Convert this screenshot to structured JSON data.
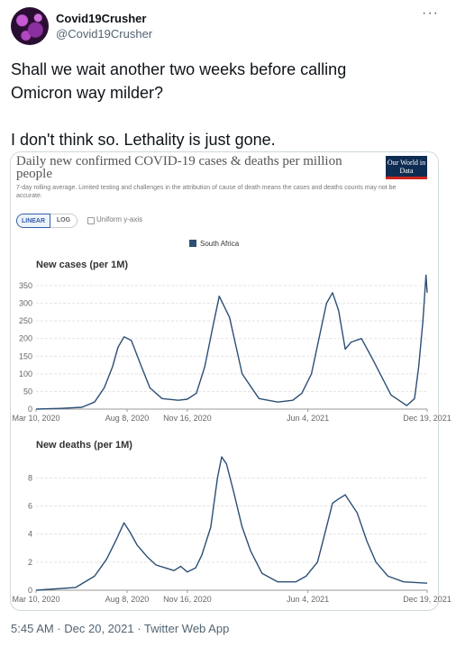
{
  "tweet": {
    "display_name": "Covid19Crusher",
    "handle": "@Covid19Crusher",
    "more_icon": "more-horizontal-icon",
    "text": "Shall we wait another two weeks before calling\nOmicron way milder?\n\nI don't think so. Lethality is just gone.",
    "timestamp": "5:45 AM · Dec 20, 2021 · Twitter Web App"
  },
  "owid": {
    "title": "Daily new confirmed COVID-19 cases & deaths per million people",
    "subtitle": "7-day rolling average. Limited testing and challenges in the attribution of cause of death means the cases and deaths counts may not be accurate.",
    "logo": "Our World in Data",
    "controls": {
      "linear": "LINEAR",
      "log": "LOG",
      "uniform": "Uniform y-axis"
    },
    "legend": "South Africa",
    "colors": {
      "series": "#2c4f75",
      "logo_bg": "#0f2c52",
      "logo_accent": "#ce261e",
      "toggle_active": "#3360a9"
    }
  },
  "chart_data": [
    {
      "type": "line",
      "title": "New cases (per 1M)",
      "series": [
        {
          "name": "South Africa",
          "x": [
            "2020-03-10",
            "2020-04-20",
            "2020-05-25",
            "2020-06-15",
            "2020-07-01",
            "2020-07-15",
            "2020-07-24",
            "2020-08-03",
            "2020-08-15",
            "2020-09-01",
            "2020-09-15",
            "2020-10-05",
            "2020-11-01",
            "2020-11-16",
            "2020-12-01",
            "2020-12-15",
            "2020-12-28",
            "2021-01-08",
            "2021-01-25",
            "2021-02-15",
            "2021-03-15",
            "2021-04-15",
            "2021-05-10",
            "2021-05-25",
            "2021-06-10",
            "2021-06-25",
            "2021-07-05",
            "2021-07-15",
            "2021-07-25",
            "2021-08-05",
            "2021-08-15",
            "2021-09-01",
            "2021-09-20",
            "2021-10-20",
            "2021-11-15",
            "2021-11-28",
            "2021-12-05",
            "2021-12-12",
            "2021-12-17",
            "2021-12-19"
          ],
          "y": [
            0,
            2,
            5,
            20,
            60,
            120,
            175,
            205,
            195,
            120,
            60,
            30,
            25,
            28,
            45,
            120,
            230,
            320,
            260,
            100,
            30,
            20,
            25,
            45,
            100,
            220,
            300,
            330,
            280,
            170,
            190,
            200,
            140,
            40,
            10,
            30,
            120,
            250,
            380,
            330
          ]
        }
      ],
      "x_ticks": [
        "Mar 10, 2020",
        "Aug 8, 2020",
        "Nov 16, 2020",
        "Jun 4, 2021",
        "Dec 19, 2021"
      ],
      "y_ticks": [
        "0",
        "50",
        "100",
        "150",
        "200",
        "250",
        "300",
        "350"
      ],
      "ylim": [
        0,
        350
      ],
      "grid": true
    },
    {
      "type": "line",
      "title": "New deaths (per 1M)",
      "series": [
        {
          "name": "South Africa",
          "x": [
            "2020-03-10",
            "2020-05-15",
            "2020-06-15",
            "2020-07-05",
            "2020-07-20",
            "2020-08-03",
            "2020-08-12",
            "2020-08-25",
            "2020-09-10",
            "2020-09-25",
            "2020-10-10",
            "2020-10-25",
            "2020-11-05",
            "2020-11-16",
            "2020-11-30",
            "2020-12-10",
            "2020-12-25",
            "2021-01-05",
            "2021-01-12",
            "2021-01-20",
            "2021-02-01",
            "2021-02-15",
            "2021-03-01",
            "2021-03-20",
            "2021-04-15",
            "2021-05-15",
            "2021-06-01",
            "2021-06-20",
            "2021-07-05",
            "2021-07-15",
            "2021-07-25",
            "2021-08-05",
            "2021-08-25",
            "2021-09-10",
            "2021-09-25",
            "2021-10-15",
            "2021-11-10",
            "2021-12-19"
          ],
          "y": [
            0,
            0.2,
            1,
            2.2,
            3.5,
            4.8,
            4.2,
            3.2,
            2.4,
            1.8,
            1.6,
            1.4,
            1.7,
            1.3,
            1.6,
            2.5,
            4.5,
            8,
            9.5,
            9,
            7,
            4.5,
            2.8,
            1.2,
            0.6,
            0.6,
            1,
            2,
            4.5,
            6.2,
            6.5,
            6.8,
            5.5,
            3.5,
            2,
            1,
            0.6,
            0.5
          ]
        }
      ],
      "x_ticks": [
        "Mar 10, 2020",
        "Aug 8, 2020",
        "Nov 16, 2020",
        "Jun 4, 2021",
        "Dec 19, 2021"
      ],
      "y_ticks": [
        "0",
        "2",
        "4",
        "6",
        "8"
      ],
      "ylim": [
        0,
        9.5
      ],
      "grid": true
    }
  ]
}
